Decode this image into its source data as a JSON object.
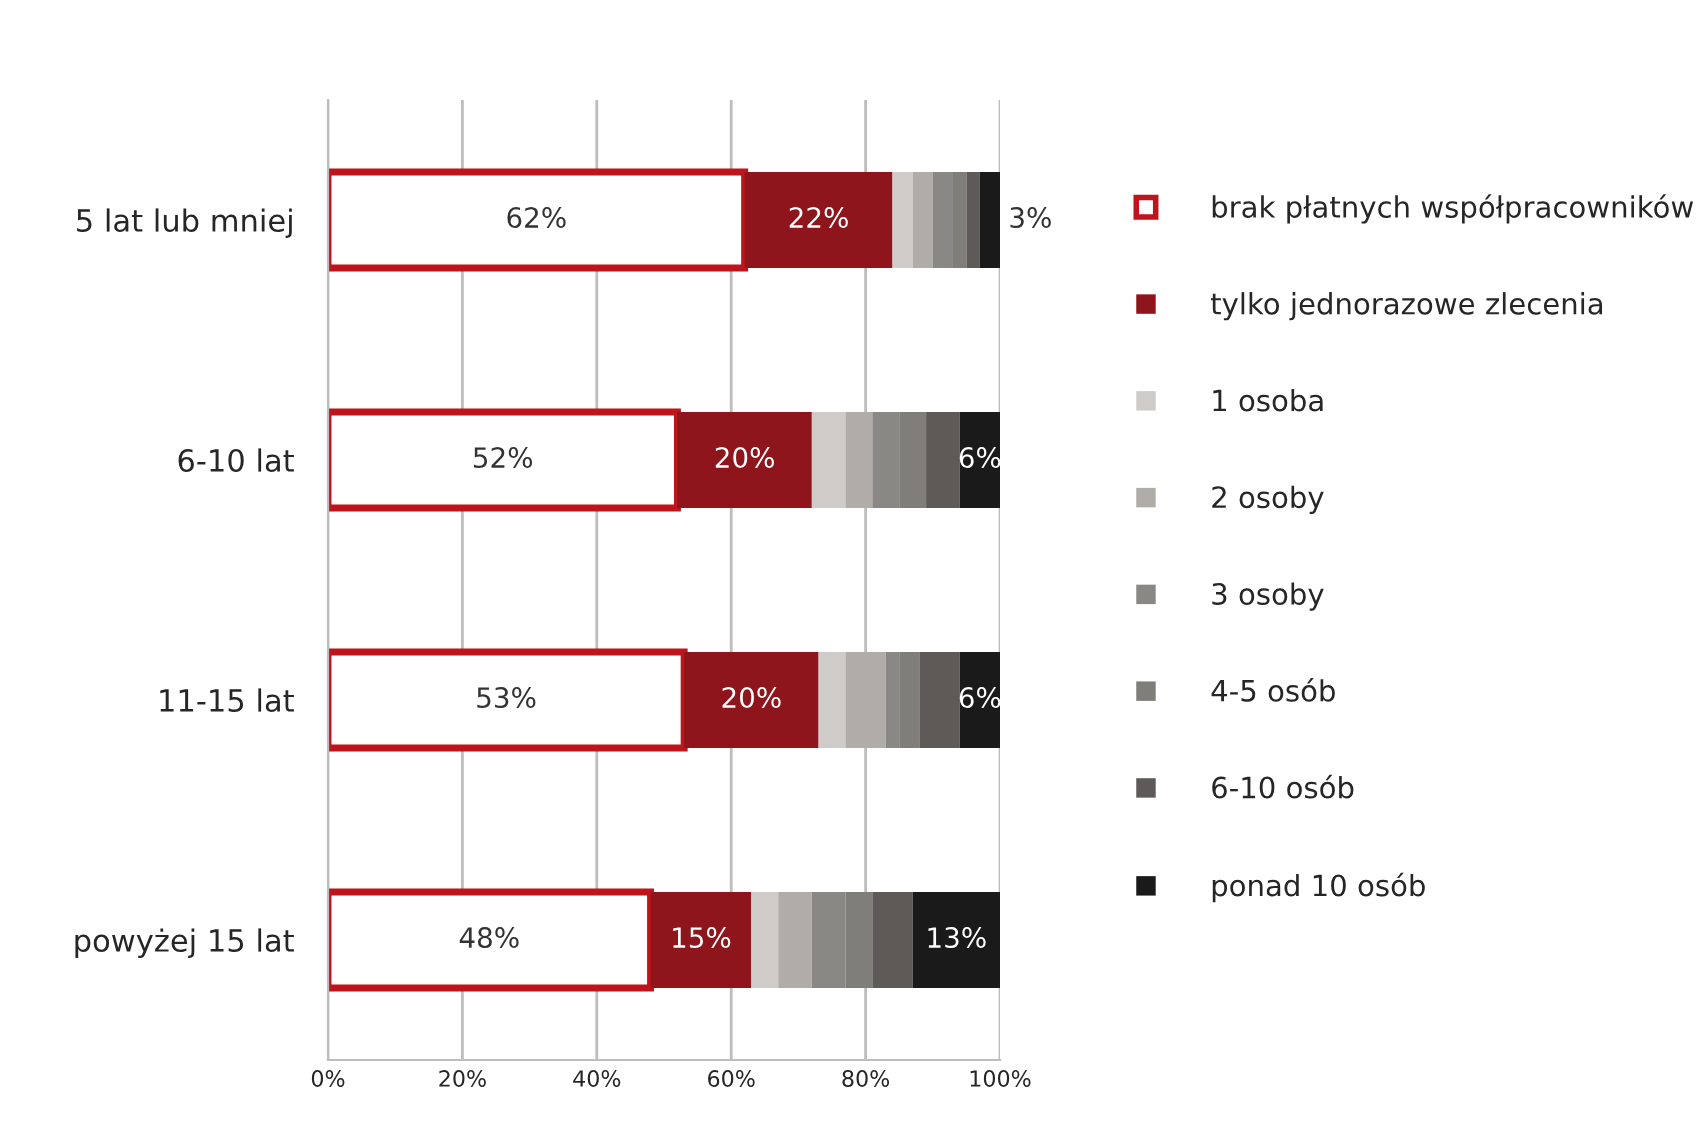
{
  "chart_data": {
    "type": "bar",
    "orientation": "horizontal",
    "stacked": true,
    "categories": [
      "5 lat lub mniej",
      "6-10 lat",
      "11-15 lat",
      "powyżej 15 lat"
    ],
    "series": [
      {
        "name": "brak płatnych współpracowników",
        "color": "#c0141c",
        "values": [
          62,
          52,
          53,
          48
        ],
        "value_labels": [
          "62%",
          "52%",
          "53%",
          "48%"
        ]
      },
      {
        "name": "tylko jednorazowe zlecenia",
        "color": "#8e151b",
        "values": [
          22,
          20,
          20,
          15
        ],
        "value_labels": [
          "22%",
          "20%",
          "20%",
          "15%"
        ]
      },
      {
        "name": "1 osoba",
        "color": "#cfcbc8",
        "values": [
          3,
          5,
          4,
          4
        ]
      },
      {
        "name": "2 osoby",
        "color": "#b0ada9",
        "values": [
          3,
          4,
          6,
          5
        ]
      },
      {
        "name": "3 osoby",
        "color": "#8a8884",
        "values": [
          3,
          4,
          2,
          5
        ]
      },
      {
        "name": "4-5 osób",
        "color": "#7f7e79",
        "values": [
          2,
          4,
          3,
          4
        ]
      },
      {
        "name": "6-10 osób",
        "color": "#5d5a57",
        "values": [
          2,
          5,
          6,
          6
        ]
      },
      {
        "name": "ponad 10 osób",
        "color": "#1a1a1a",
        "values": [
          3,
          6,
          6,
          13
        ],
        "value_labels": [
          "3%",
          "6%",
          "6%",
          "13%"
        ]
      }
    ],
    "xlim": [
      0,
      100
    ],
    "xticks": [
      {
        "value": 0,
        "label": "0%"
      },
      {
        "value": 20,
        "label": "20%"
      },
      {
        "value": 40,
        "label": "40%"
      },
      {
        "value": 60,
        "label": "60%"
      },
      {
        "value": 80,
        "label": "80%"
      },
      {
        "value": 100,
        "label": "100%"
      }
    ],
    "grid": "x",
    "legend": "right",
    "marker": "square"
  }
}
